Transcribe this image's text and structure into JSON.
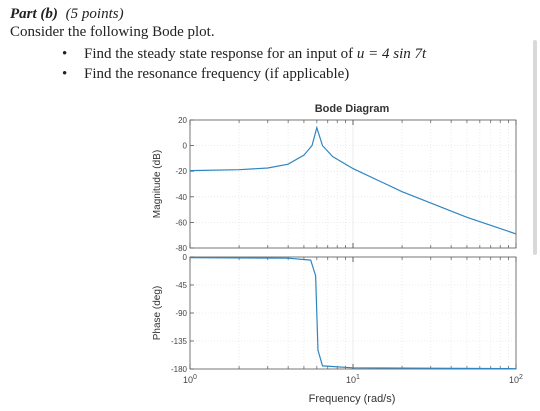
{
  "problem": {
    "part_label": "Part (b)",
    "points": "(5 points)",
    "intro": "Consider the following Bode plot.",
    "bullets": [
      {
        "prefix": "Find the steady state response for an input of ",
        "math": "u = 4 sin 7t"
      },
      {
        "prefix": "Find the resonance frequency (if applicable)",
        "math": ""
      }
    ]
  },
  "chart_data": {
    "type": "line",
    "title": "Bode Diagram",
    "xlabel": "Frequency  (rad/s)",
    "x_scale": "log",
    "xlim": [
      1,
      100
    ],
    "x_ticks": [
      {
        "base": "10",
        "exp": "0"
      },
      {
        "base": "10",
        "exp": "1"
      },
      {
        "base": "10",
        "exp": "2"
      }
    ],
    "grid": true,
    "color": "#2e86c1",
    "panels": [
      {
        "ylabel": "Magnitude (dB)",
        "ylim": [
          -80,
          20
        ],
        "yticks": [
          20,
          0,
          -20,
          -40,
          -60,
          -80
        ],
        "points": [
          [
            1,
            -19.5
          ],
          [
            2,
            -18.8
          ],
          [
            3,
            -17.5
          ],
          [
            4,
            -14.5
          ],
          [
            5,
            -7.5
          ],
          [
            5.6,
            0
          ],
          [
            6.0,
            14
          ],
          [
            6.5,
            0
          ],
          [
            7.5,
            -8.5
          ],
          [
            10,
            -18
          ],
          [
            20,
            -36
          ],
          [
            50,
            -56
          ],
          [
            100,
            -69
          ]
        ]
      },
      {
        "ylabel": "Phase (deg)",
        "ylim": [
          -180,
          0
        ],
        "yticks": [
          0,
          -45,
          -90,
          -135,
          -180
        ],
        "points": [
          [
            1,
            -1
          ],
          [
            4,
            -2
          ],
          [
            5.5,
            -5
          ],
          [
            5.9,
            -30
          ],
          [
            6.0,
            -90
          ],
          [
            6.1,
            -150
          ],
          [
            6.5,
            -175
          ],
          [
            10,
            -178
          ],
          [
            100,
            -179.5
          ]
        ]
      }
    ]
  }
}
